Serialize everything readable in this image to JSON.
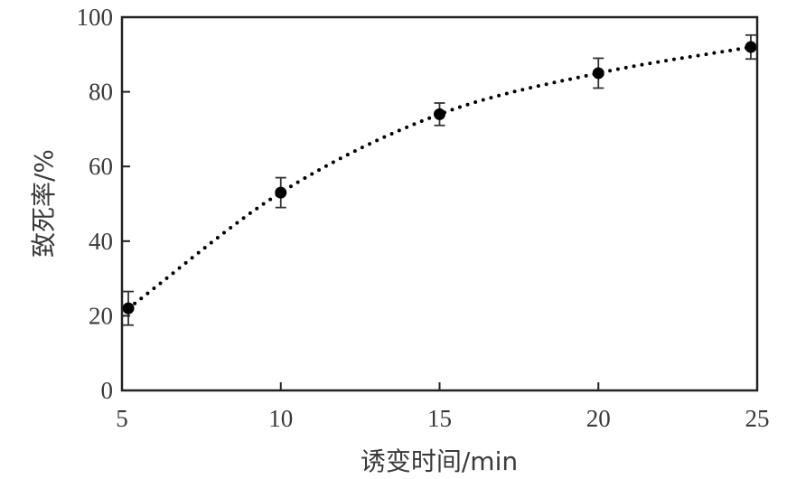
{
  "chart_data": {
    "type": "scatter",
    "title": "",
    "xlabel": "诱变时间/min",
    "ylabel": "致死率/%",
    "xlim": [
      5,
      25
    ],
    "ylim": [
      0,
      100
    ],
    "xticks": [
      5,
      10,
      15,
      20,
      25
    ],
    "yticks": [
      0,
      20,
      40,
      60,
      80,
      100
    ],
    "grid": false,
    "series": [
      {
        "x": [
          5.2,
          10,
          15,
          20,
          24.8
        ],
        "y": [
          22,
          53,
          74,
          85,
          92
        ],
        "error": [
          4.5,
          4,
          3,
          4,
          3.2
        ],
        "color": "#000000",
        "fit_line": "dotted"
      }
    ]
  }
}
